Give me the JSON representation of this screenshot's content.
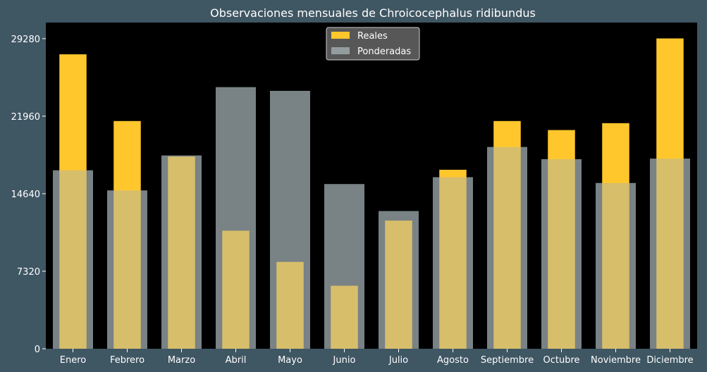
{
  "chart_data": {
    "type": "bar",
    "title": "Observaciones mensuales de Chroicocephalus ridibundus",
    "xlabel": "",
    "ylabel": "",
    "categories": [
      "Enero",
      "Febrero",
      "Marzo",
      "Abril",
      "Mayo",
      "Junio",
      "Julio",
      "Agosto",
      "Septiembre",
      "Octubre",
      "Noviembre",
      "Diciembre"
    ],
    "series": [
      {
        "name": "Reales",
        "color": "#ffc72c",
        "values": [
          27800,
          21500,
          18150,
          11150,
          8200,
          5950,
          12100,
          16900,
          21500,
          20650,
          21300,
          29300
        ]
      },
      {
        "name": "Ponderadas",
        "color": "#a7b4b8",
        "values": [
          16850,
          14950,
          18250,
          24700,
          24350,
          15550,
          13000,
          16200,
          19050,
          17900,
          15650,
          17950
        ]
      }
    ],
    "ylim": [
      0,
      30800
    ],
    "yticks": [
      "0",
      "7320",
      "14640",
      "21960",
      "29280"
    ],
    "legend_position": "top-center",
    "grid": false,
    "plot_background": "#000000",
    "figure_background": "#3f5663"
  }
}
